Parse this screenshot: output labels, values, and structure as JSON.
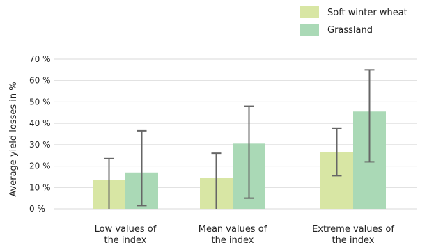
{
  "chart_data": {
    "type": "bar",
    "title": "",
    "ylabel": "Average yield losses in %",
    "xlabel": "",
    "categories": [
      [
        "Low values of",
        "the index"
      ],
      [
        "Mean values of",
        "the index"
      ],
      [
        "Extreme values of",
        "the index"
      ]
    ],
    "ylim": [
      0,
      70
    ],
    "yticks": [
      0,
      10,
      20,
      30,
      40,
      50,
      60,
      70
    ],
    "ytick_labels": [
      "0 %",
      "10 %",
      "20 %",
      "30 %",
      "40 %",
      "50 %",
      "60 %",
      "70 %"
    ],
    "grid": true,
    "legend_position": "top-right",
    "series": [
      {
        "name": "Soft winter wheat",
        "color": "#d8e6a4",
        "values": [
          13.5,
          14.5,
          26.5
        ],
        "error_low": [
          0,
          0,
          15.5
        ],
        "error_high": [
          23.5,
          26,
          37.5
        ]
      },
      {
        "name": "Grassland",
        "color": "#aad9b6",
        "values": [
          17,
          30.5,
          45.5
        ],
        "error_low": [
          1.5,
          5,
          22
        ],
        "error_high": [
          36.5,
          48,
          65
        ]
      }
    ]
  }
}
